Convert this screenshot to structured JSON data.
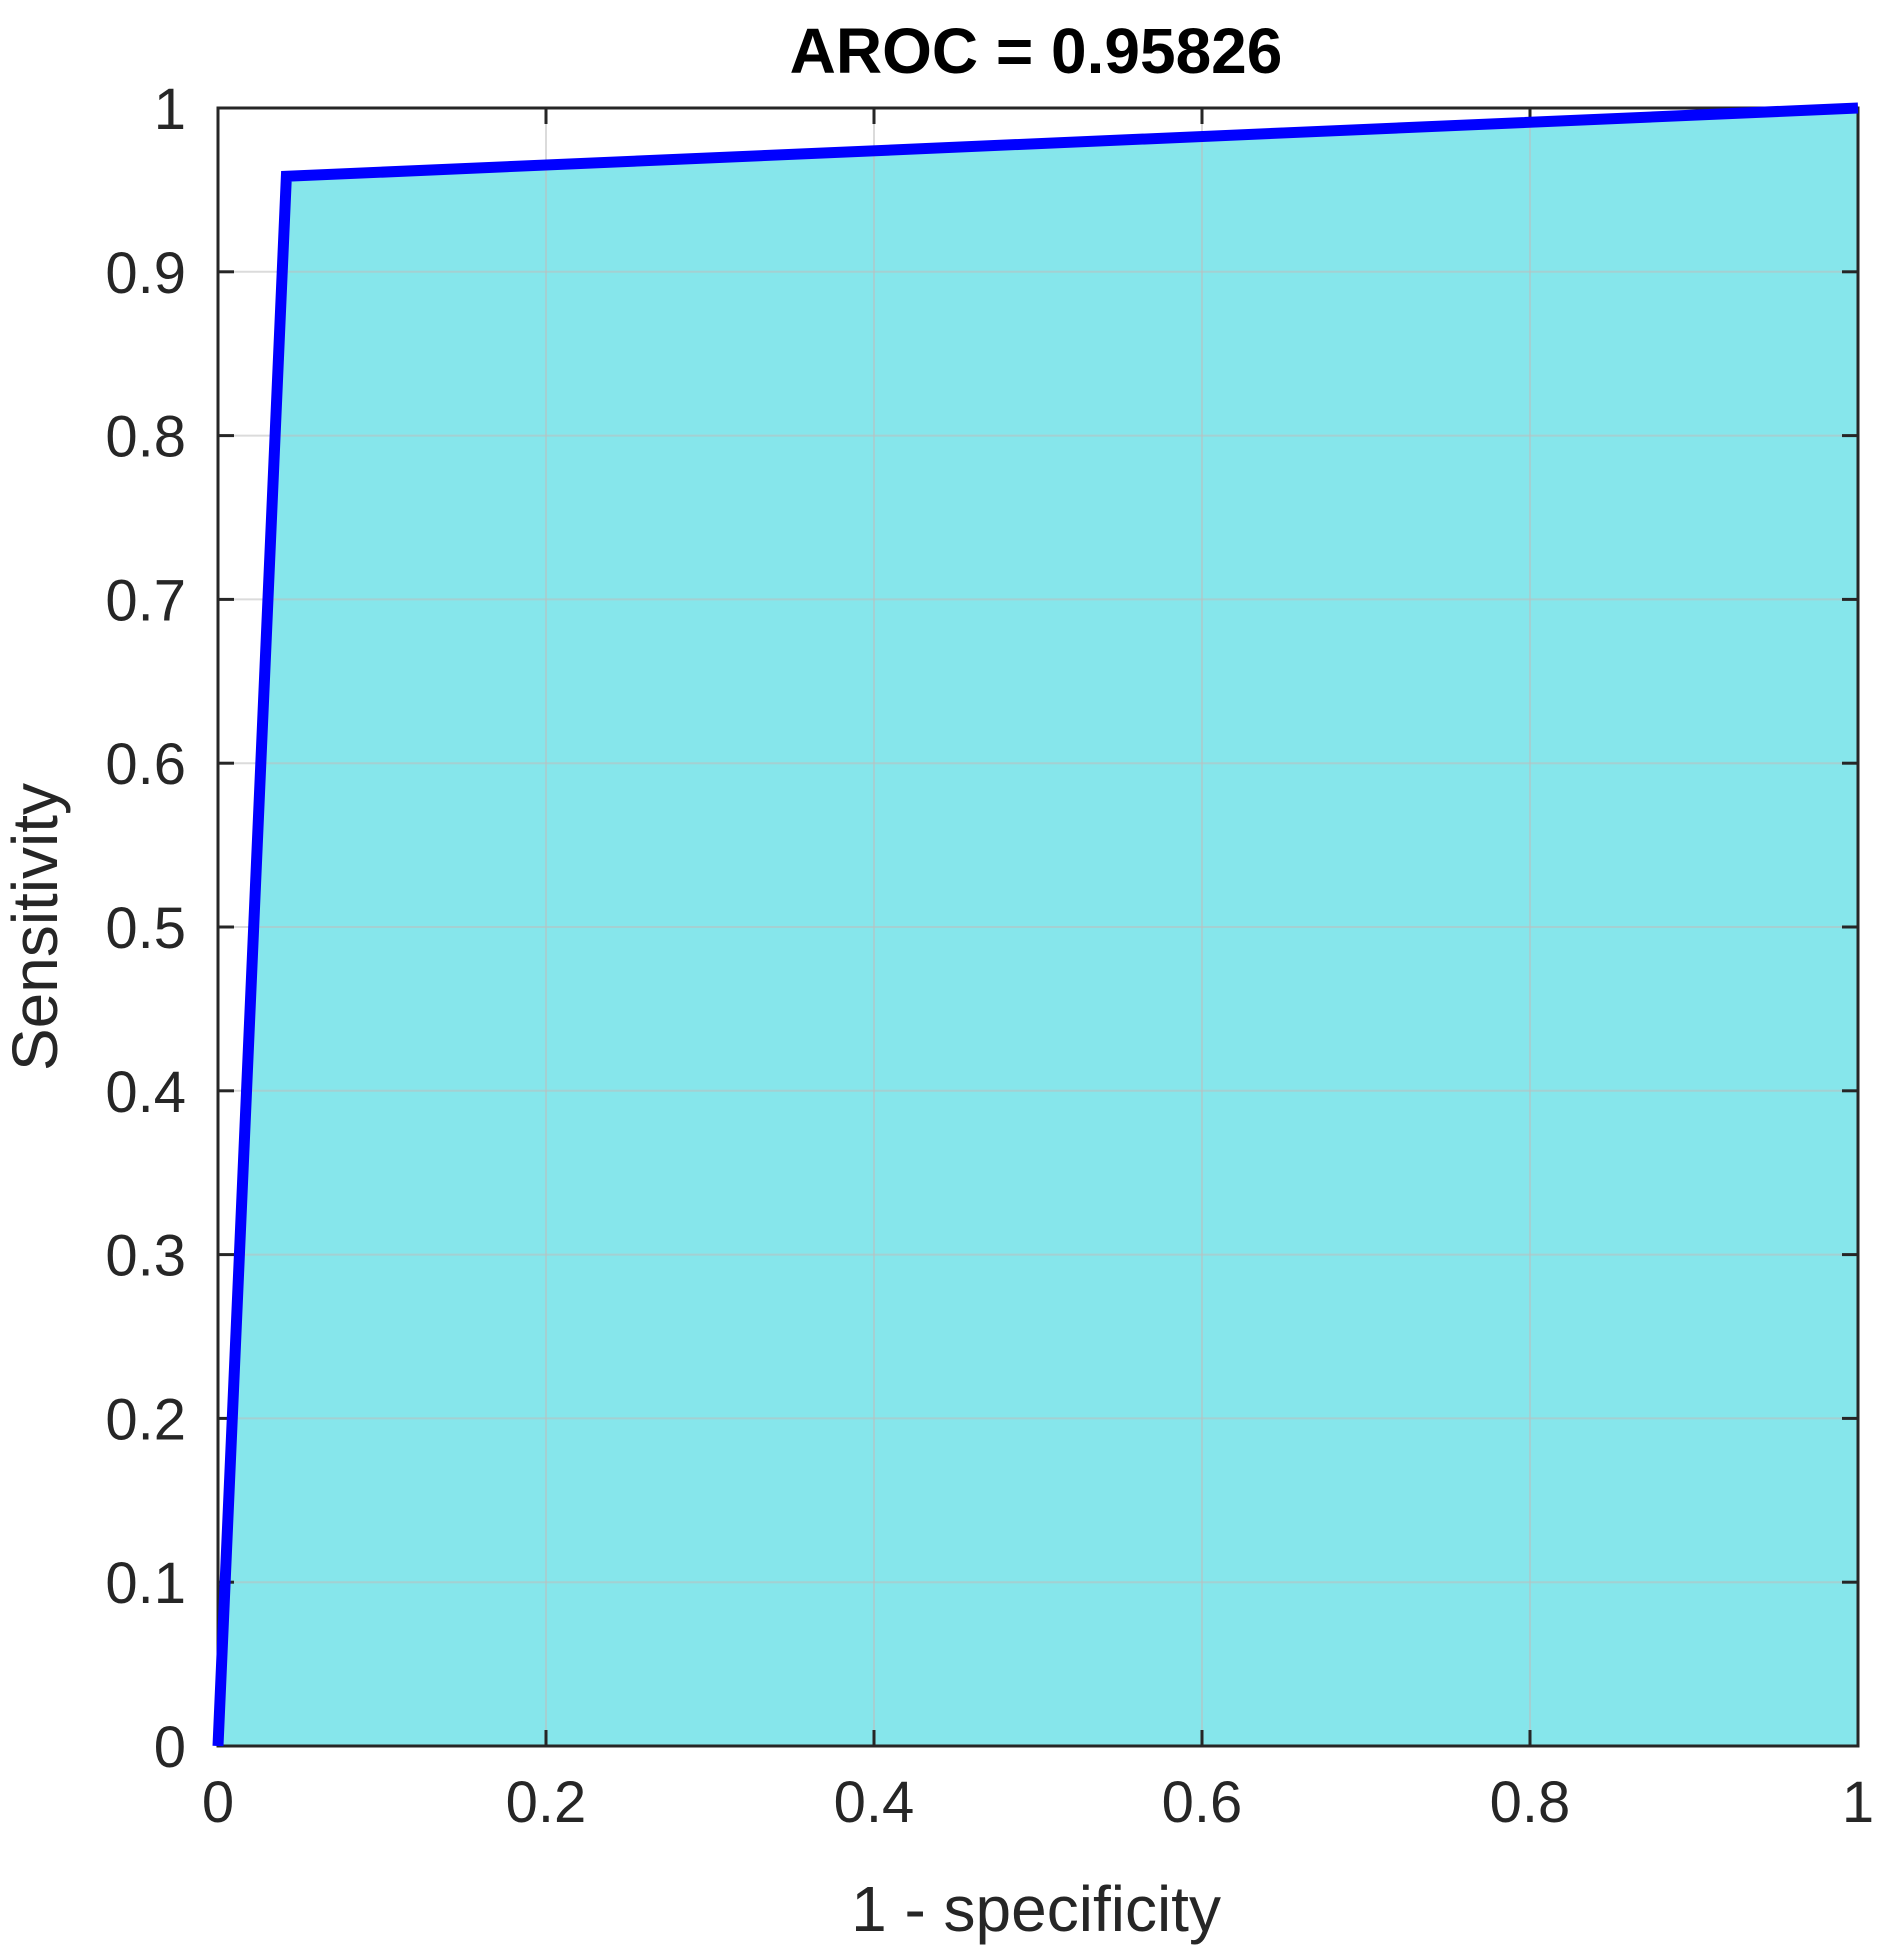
{
  "chart_data": {
    "type": "area",
    "title": "AROC = 0.95826",
    "xlabel": "1 - specificity",
    "ylabel": "Sensitivity",
    "xlim": [
      0,
      1
    ],
    "ylim": [
      0,
      1
    ],
    "grid": true,
    "x_ticks": [
      "0",
      "0.2",
      "0.4",
      "0.6",
      "0.8",
      "1"
    ],
    "y_ticks": [
      "0",
      "0.1",
      "0.2",
      "0.3",
      "0.4",
      "0.5",
      "0.6",
      "0.7",
      "0.8",
      "0.9",
      "1"
    ],
    "series": [
      {
        "x": [
          0,
          0.0417,
          1
        ],
        "y": [
          0,
          0.9583,
          1
        ]
      }
    ],
    "colors": {
      "line": "#0000ff",
      "fill": "#86e6eb",
      "grid": "#bdbdbd",
      "axis": "#262626"
    }
  }
}
